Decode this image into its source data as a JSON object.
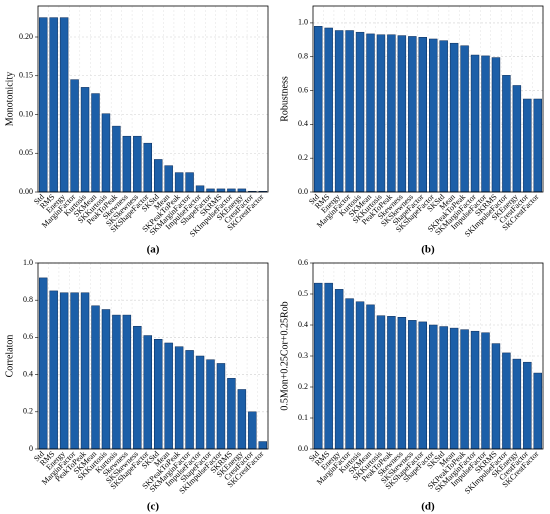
{
  "chart_data": [
    {
      "type": "bar",
      "ylabel": "Monotonicity",
      "caption": "(a)",
      "categories": [
        "Std",
        "RMS",
        "Energy",
        "MarginFactor",
        "Kurtosis",
        "SKMean",
        "SKKurtosis",
        "PeakToPeak",
        "Skewness",
        "SKSkewness",
        "SKShapeFactor",
        "SKStd",
        "Mean",
        "SKPeakToPeak",
        "SKMarginFactor",
        "ImpulseFactor",
        "ShapeFactor",
        "SKRMS",
        "SKImpulseFactor",
        "SKEnergy",
        "CrestFactor",
        "SKCrestFactor"
      ],
      "values": [
        0.225,
        0.225,
        0.225,
        0.145,
        0.135,
        0.127,
        0.101,
        0.085,
        0.072,
        0.072,
        0.063,
        0.042,
        0.034,
        0.025,
        0.025,
        0.008,
        0.004,
        0.004,
        0.004,
        0.004,
        0.001,
        0.001
      ],
      "color": "#1c5fa8",
      "ylim": [
        0,
        0.24
      ],
      "yticks": [
        {
          "value": 0,
          "label": "0.00"
        },
        {
          "value": 0.05,
          "label": "0.05"
        },
        {
          "value": 0.1,
          "label": "0.10"
        },
        {
          "value": 0.15,
          "label": "0.15"
        },
        {
          "value": 0.2,
          "label": "0.20"
        }
      ],
      "grid": true
    },
    {
      "type": "bar",
      "ylabel": "Robustness",
      "caption": "(b)",
      "categories": [
        "Std",
        "RMS",
        "Energy",
        "MarginFactor",
        "Kurtosis",
        "SKMean",
        "SKKurtosis",
        "PeakToPeak",
        "Skewness",
        "SKSkewness",
        "ShapeFactor",
        "SKShapeFactor",
        "SKStd",
        "Mean",
        "SKPeakToPeak",
        "SKMarginFactor",
        "ImpulseFactor",
        "SKRMS",
        "SKImpulseFactor",
        "SKEnergy",
        "CrestFactor",
        "SKCrestFactor"
      ],
      "values": [
        0.98,
        0.97,
        0.955,
        0.955,
        0.945,
        0.935,
        0.93,
        0.93,
        0.925,
        0.92,
        0.915,
        0.905,
        0.895,
        0.88,
        0.865,
        0.81,
        0.805,
        0.795,
        0.69,
        0.63,
        0.55,
        0.55
      ],
      "color": "#1c5fa8",
      "ylim": [
        0,
        1.1
      ],
      "yticks": [
        {
          "value": 0,
          "label": "0.0"
        },
        0.2,
        0.4,
        0.6,
        0.8,
        {
          "value": 1,
          "label": "1.0"
        }
      ],
      "grid": true
    },
    {
      "type": "bar",
      "ylabel": "Correlaton",
      "caption": "(c)",
      "categories": [
        "Std",
        "RMS",
        "Energy",
        "MarginFactor",
        "PeakToPeak",
        "SKMean",
        "SKKurtosis",
        "Kurtosis",
        "Skewness",
        "SKSkewness",
        "SKShapeFactor",
        "SKStd",
        "Mean",
        "SKPeakToPeak",
        "SKMarginFactor",
        "ImpulseFactor",
        "ShapeFactor",
        "SKImpulseFactor",
        "SKRMS",
        "SKEnergy",
        "CrestFactor",
        "SKCrestFactor"
      ],
      "values": [
        0.92,
        0.85,
        0.84,
        0.84,
        0.84,
        0.77,
        0.75,
        0.72,
        0.72,
        0.66,
        0.61,
        0.59,
        0.57,
        0.55,
        0.53,
        0.5,
        0.48,
        0.46,
        0.38,
        0.32,
        0.2,
        0.04
      ],
      "color": "#1c5fa8",
      "ylim": [
        0,
        1
      ],
      "yticks": [
        0,
        0.2,
        0.4,
        0.6,
        0.8,
        {
          "value": 1,
          "label": "1.0"
        }
      ],
      "grid": true
    },
    {
      "type": "bar",
      "ylabel": "0.5Mon+0.25Cor+0.25Rob",
      "caption": "(d)",
      "categories": [
        "Std",
        "RMS",
        "Energy",
        "MarginFactor",
        "Kurtosis",
        "SKMean",
        "SKKurtosis",
        "PeakToPeak",
        "Skewness",
        "SKSkewness",
        "SKShapeFactor",
        "ShapeFactor",
        "SKStd",
        "Mean",
        "SKPeakToPeak",
        "SKMarginFactor",
        "ImpulseFactor",
        "SKRMS",
        "SKImpulseFactor",
        "SKEnergy",
        "CrestFactor",
        "SKCrestFactor"
      ],
      "values": [
        0.535,
        0.535,
        0.515,
        0.485,
        0.475,
        0.465,
        0.43,
        0.428,
        0.425,
        0.415,
        0.41,
        0.4,
        0.395,
        0.39,
        0.385,
        0.38,
        0.375,
        0.34,
        0.31,
        0.29,
        0.28,
        0.245
      ],
      "color": "#1c5fa8",
      "ylim": [
        0,
        0.6
      ],
      "yticks": [
        {
          "value": 0,
          "label": "0.0"
        },
        0.1,
        0.2,
        0.3,
        0.4,
        0.5,
        0.6
      ],
      "grid": true
    }
  ]
}
